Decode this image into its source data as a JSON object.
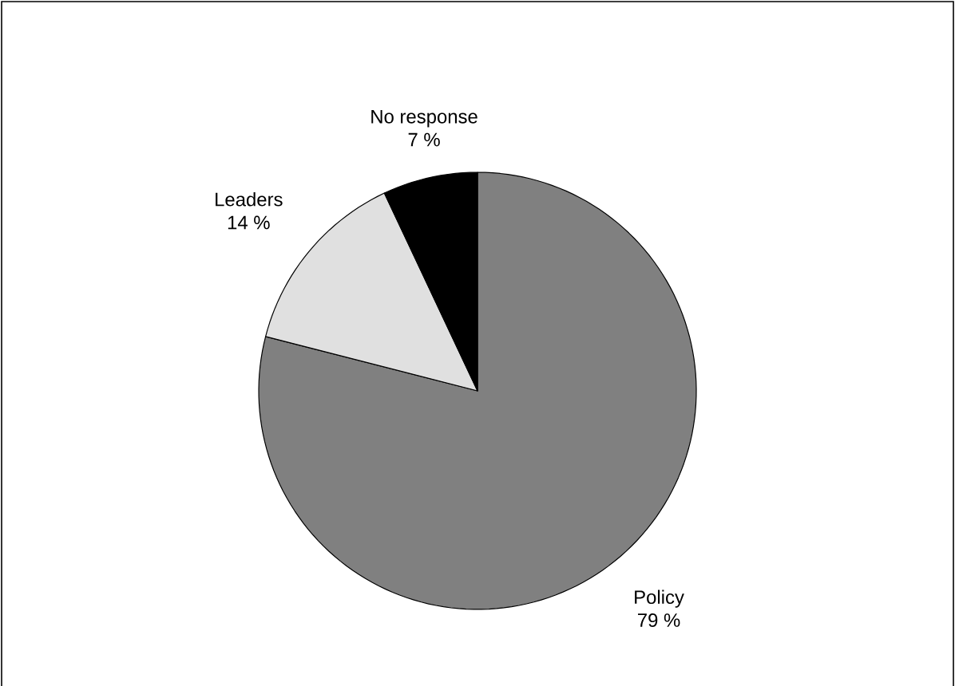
{
  "chart_data": {
    "type": "pie",
    "categories": [
      "Policy",
      "Leaders",
      "No response"
    ],
    "values": [
      79,
      14,
      7
    ],
    "value_labels": [
      "79 %",
      "14 %",
      "7 %"
    ],
    "colors": [
      "#808080",
      "#e0e0e0",
      "#000000"
    ]
  }
}
